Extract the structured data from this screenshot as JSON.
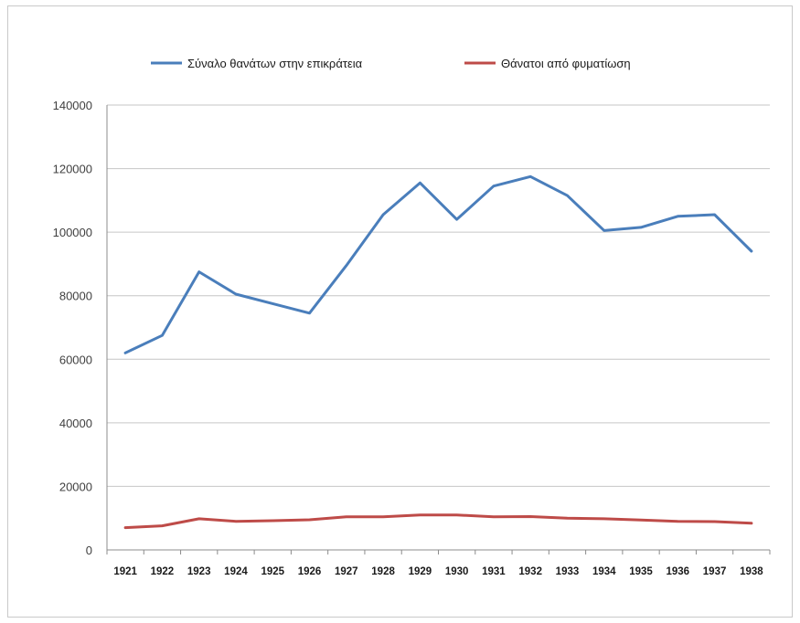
{
  "chart_data": {
    "type": "line",
    "title": "",
    "xlabel": "",
    "ylabel": "",
    "categories": [
      "1921",
      "1922",
      "1923",
      "1924",
      "1925",
      "1926",
      "1927",
      "1928",
      "1929",
      "1930",
      "1931",
      "1932",
      "1933",
      "1934",
      "1935",
      "1936",
      "1937",
      "1938"
    ],
    "ylim": [
      0,
      140000
    ],
    "yticks": [
      "0",
      "20000",
      "40000",
      "60000",
      "80000",
      "100000",
      "120000",
      "140000"
    ],
    "grid": true,
    "legend_position": "top",
    "series": [
      {
        "name": "Σύναλο θανάτων στην επικράτεια",
        "color": "#4a7ebb",
        "values": [
          62000,
          67500,
          87500,
          80500,
          77500,
          74500,
          89500,
          105500,
          115500,
          104000,
          114500,
          117500,
          111500,
          100500,
          101500,
          105000,
          105500,
          94000
        ]
      },
      {
        "name": "Θάνατοι από φυματίωση",
        "color": "#be4b48",
        "values": [
          7000,
          7600,
          9800,
          9000,
          9200,
          9500,
          10400,
          10400,
          11000,
          11000,
          10400,
          10500,
          10000,
          9800,
          9400,
          9000,
          8900,
          8400
        ]
      }
    ]
  }
}
